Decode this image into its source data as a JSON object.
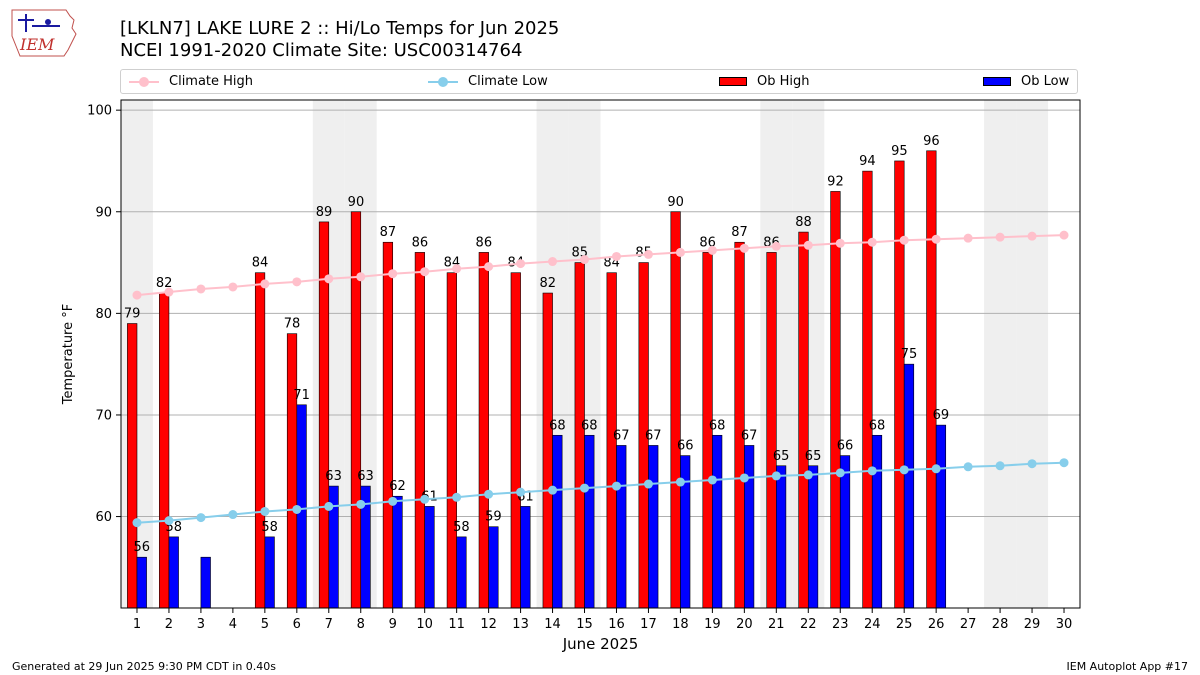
{
  "header": {
    "title_line1": "[LKLN7] LAKE LURE 2 :: Hi/Lo Temps for Jun 2025",
    "title_line2": "NCEI 1991-2020 Climate Site: USC00314764",
    "logo_text": "IEM"
  },
  "footer": {
    "left": "Generated at 29 Jun 2025 9:30 PM CDT in 0.40s",
    "right": "IEM Autoplot App #17"
  },
  "colors": {
    "climate_high": "#ffc0cb",
    "climate_low": "#87ceeb",
    "ob_high": "#ff0000",
    "ob_low": "#0000ff",
    "weekend_band": "#efefef",
    "grid": "#b0b0b0"
  },
  "chart_data": {
    "type": "bar",
    "xlabel": "June 2025",
    "ylabel": "Temperature °F",
    "ylim": [
      51,
      101
    ],
    "yticks": [
      60,
      70,
      80,
      90,
      100
    ],
    "grid": "horizontal",
    "legend_position": "top",
    "categories": [
      "1",
      "2",
      "3",
      "4",
      "5",
      "6",
      "7",
      "8",
      "9",
      "10",
      "11",
      "12",
      "13",
      "14",
      "15",
      "16",
      "17",
      "18",
      "19",
      "20",
      "21",
      "22",
      "23",
      "24",
      "25",
      "26",
      "27",
      "28",
      "29",
      "30"
    ],
    "weekend_days": [
      1,
      7,
      8,
      14,
      15,
      21,
      22,
      28,
      29
    ],
    "series": [
      {
        "name": "Ob High",
        "kind": "bar",
        "values": [
          79,
          82,
          null,
          null,
          84,
          78,
          89,
          90,
          87,
          86,
          84,
          86,
          84,
          82,
          85,
          84,
          85,
          90,
          86,
          87,
          86,
          88,
          92,
          94,
          95,
          96,
          null,
          null,
          null,
          null
        ],
        "labels": [
          "79",
          "82",
          "",
          "",
          "84",
          "78",
          "89",
          "90",
          "87",
          "86",
          "84",
          "86",
          "84",
          "82",
          "85",
          "84",
          "85",
          "90",
          "86",
          "87",
          "86",
          "88",
          "92",
          "94",
          "95",
          "96",
          "",
          "",
          "",
          ""
        ]
      },
      {
        "name": "Ob Low",
        "kind": "bar",
        "values": [
          56,
          58,
          56,
          null,
          58,
          71,
          63,
          63,
          62,
          61,
          58,
          59,
          61,
          68,
          68,
          67,
          67,
          66,
          68,
          67,
          65,
          65,
          66,
          68,
          75,
          69,
          null,
          null,
          null,
          null
        ],
        "labels": [
          "56",
          "58",
          "",
          "",
          "58",
          "71",
          "63",
          "63",
          "62",
          "61",
          "58",
          "59",
          "61",
          "68",
          "68",
          "67",
          "67",
          "66",
          "68",
          "67",
          "65",
          "65",
          "66",
          "68",
          "75",
          "69",
          "",
          "",
          "",
          ""
        ]
      },
      {
        "name": "Climate High",
        "kind": "line",
        "values": [
          81.8,
          82.1,
          82.4,
          82.6,
          82.9,
          83.1,
          83.4,
          83.6,
          83.9,
          84.1,
          84.4,
          84.6,
          84.9,
          85.1,
          85.3,
          85.6,
          85.8,
          86.0,
          86.2,
          86.4,
          86.6,
          86.7,
          86.9,
          87.0,
          87.2,
          87.3,
          87.4,
          87.5,
          87.6,
          87.7
        ]
      },
      {
        "name": "Climate Low",
        "kind": "line",
        "values": [
          59.4,
          59.6,
          59.9,
          60.2,
          60.5,
          60.7,
          61.0,
          61.2,
          61.5,
          61.7,
          61.9,
          62.2,
          62.4,
          62.6,
          62.8,
          63.0,
          63.2,
          63.4,
          63.6,
          63.8,
          64.0,
          64.1,
          64.3,
          64.5,
          64.6,
          64.7,
          64.9,
          65.0,
          65.2,
          65.3
        ]
      }
    ]
  }
}
